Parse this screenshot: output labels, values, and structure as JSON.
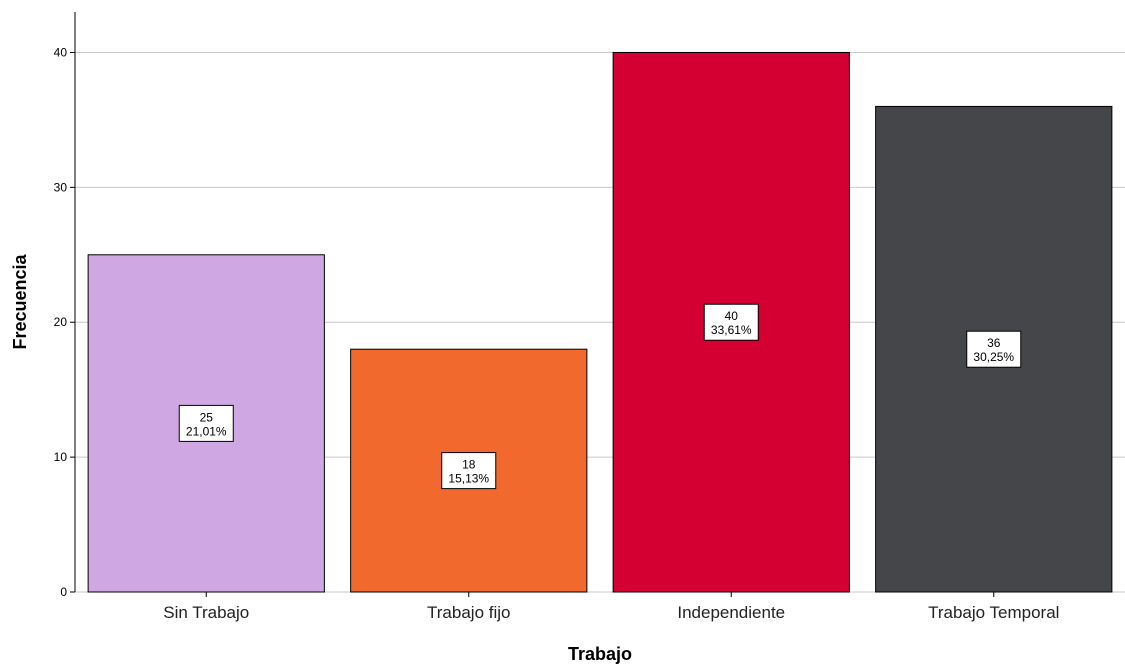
{
  "chart_data": {
    "type": "bar",
    "categories": [
      "Sin Trabajo",
      "Trabajo fijo",
      "Independiente",
      "Trabajo Temporal"
    ],
    "values": [
      25,
      18,
      40,
      36
    ],
    "percent_labels": [
      "21,01%",
      "15,13%",
      "33,61%",
      "30,25%"
    ],
    "colors": [
      "#cfa8e3",
      "#f2692d",
      "#d50032",
      "#45464a"
    ],
    "xlabel": "Trabajo",
    "ylabel": "Frecuencia",
    "ylim": [
      0,
      43
    ],
    "yticks": [
      0,
      10,
      20,
      30,
      40
    ],
    "grid": true,
    "legend": "none",
    "data_labels": "inside-center"
  }
}
